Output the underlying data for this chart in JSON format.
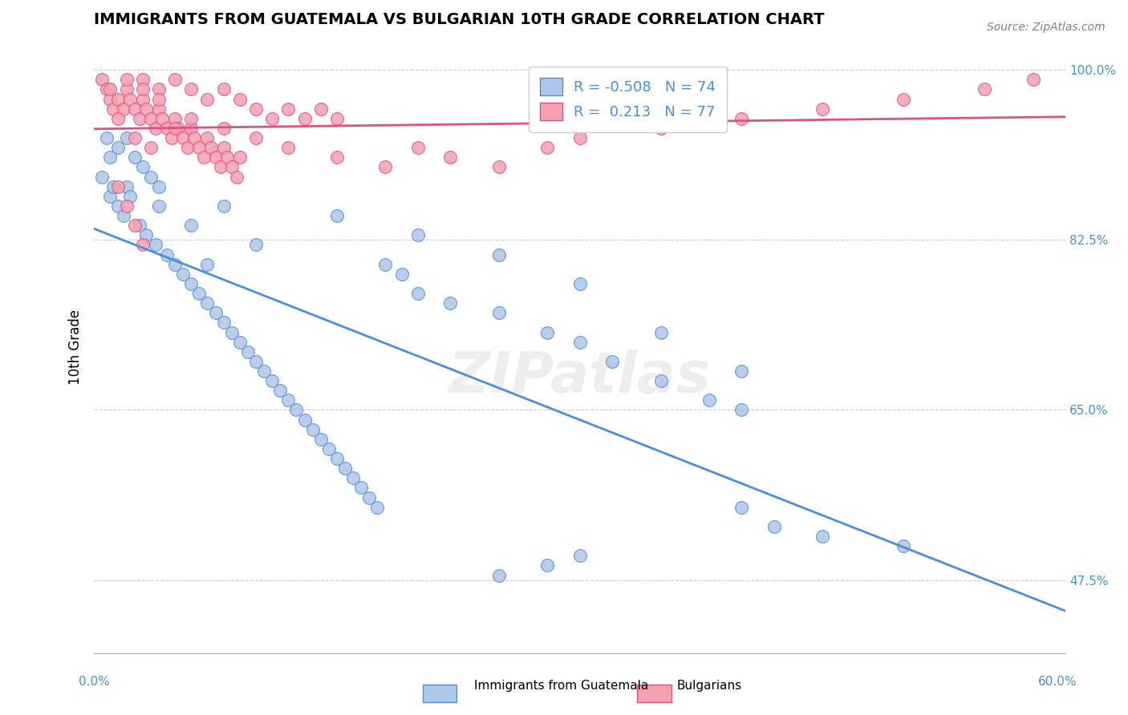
{
  "title": "IMMIGRANTS FROM GUATEMALA VS BULGARIAN 10TH GRADE CORRELATION CHART",
  "source": "Source: ZipAtlas.com",
  "ylabel": "10th Grade",
  "xlim": [
    0.0,
    0.6
  ],
  "ylim": [
    0.4,
    1.03
  ],
  "blue_R": -0.508,
  "blue_N": 74,
  "pink_R": 0.213,
  "pink_N": 77,
  "blue_color": "#aec6e8",
  "pink_color": "#f4a0b0",
  "blue_line_color": "#4a90d9",
  "pink_line_color": "#e05080",
  "legend_label_blue": "Immigrants from Guatemala",
  "legend_label_pink": "Bulgarians",
  "watermark": "ZIPatlas",
  "blue_dots": [
    [
      0.02,
      0.88
    ],
    [
      0.015,
      0.92
    ],
    [
      0.01,
      0.87
    ],
    [
      0.025,
      0.91
    ],
    [
      0.03,
      0.9
    ],
    [
      0.035,
      0.89
    ],
    [
      0.04,
      0.88
    ],
    [
      0.02,
      0.93
    ],
    [
      0.015,
      0.86
    ],
    [
      0.01,
      0.91
    ],
    [
      0.005,
      0.89
    ],
    [
      0.008,
      0.93
    ],
    [
      0.012,
      0.88
    ],
    [
      0.022,
      0.87
    ],
    [
      0.018,
      0.85
    ],
    [
      0.028,
      0.84
    ],
    [
      0.032,
      0.83
    ],
    [
      0.038,
      0.82
    ],
    [
      0.045,
      0.81
    ],
    [
      0.05,
      0.8
    ],
    [
      0.055,
      0.79
    ],
    [
      0.06,
      0.78
    ],
    [
      0.065,
      0.77
    ],
    [
      0.07,
      0.76
    ],
    [
      0.075,
      0.75
    ],
    [
      0.08,
      0.74
    ],
    [
      0.085,
      0.73
    ],
    [
      0.09,
      0.72
    ],
    [
      0.095,
      0.71
    ],
    [
      0.1,
      0.7
    ],
    [
      0.105,
      0.69
    ],
    [
      0.11,
      0.68
    ],
    [
      0.115,
      0.67
    ],
    [
      0.12,
      0.66
    ],
    [
      0.125,
      0.65
    ],
    [
      0.13,
      0.64
    ],
    [
      0.135,
      0.63
    ],
    [
      0.14,
      0.62
    ],
    [
      0.145,
      0.61
    ],
    [
      0.15,
      0.6
    ],
    [
      0.155,
      0.59
    ],
    [
      0.16,
      0.58
    ],
    [
      0.165,
      0.57
    ],
    [
      0.17,
      0.56
    ],
    [
      0.175,
      0.55
    ],
    [
      0.18,
      0.8
    ],
    [
      0.19,
      0.79
    ],
    [
      0.2,
      0.77
    ],
    [
      0.22,
      0.76
    ],
    [
      0.25,
      0.75
    ],
    [
      0.28,
      0.73
    ],
    [
      0.3,
      0.72
    ],
    [
      0.32,
      0.7
    ],
    [
      0.35,
      0.68
    ],
    [
      0.38,
      0.66
    ],
    [
      0.4,
      0.65
    ],
    [
      0.3,
      0.78
    ],
    [
      0.25,
      0.81
    ],
    [
      0.2,
      0.83
    ],
    [
      0.15,
      0.85
    ],
    [
      0.1,
      0.82
    ],
    [
      0.08,
      0.86
    ],
    [
      0.06,
      0.84
    ],
    [
      0.04,
      0.86
    ],
    [
      0.07,
      0.8
    ],
    [
      0.35,
      0.73
    ],
    [
      0.4,
      0.69
    ],
    [
      0.42,
      0.53
    ],
    [
      0.45,
      0.52
    ],
    [
      0.5,
      0.51
    ],
    [
      0.3,
      0.5
    ],
    [
      0.28,
      0.49
    ],
    [
      0.4,
      0.55
    ],
    [
      0.25,
      0.48
    ]
  ],
  "pink_dots": [
    [
      0.005,
      0.99
    ],
    [
      0.008,
      0.98
    ],
    [
      0.01,
      0.97
    ],
    [
      0.012,
      0.96
    ],
    [
      0.015,
      0.97
    ],
    [
      0.018,
      0.96
    ],
    [
      0.02,
      0.98
    ],
    [
      0.022,
      0.97
    ],
    [
      0.025,
      0.96
    ],
    [
      0.028,
      0.95
    ],
    [
      0.03,
      0.97
    ],
    [
      0.032,
      0.96
    ],
    [
      0.035,
      0.95
    ],
    [
      0.038,
      0.94
    ],
    [
      0.04,
      0.96
    ],
    [
      0.042,
      0.95
    ],
    [
      0.045,
      0.94
    ],
    [
      0.048,
      0.93
    ],
    [
      0.05,
      0.95
    ],
    [
      0.052,
      0.94
    ],
    [
      0.055,
      0.93
    ],
    [
      0.058,
      0.92
    ],
    [
      0.06,
      0.94
    ],
    [
      0.062,
      0.93
    ],
    [
      0.065,
      0.92
    ],
    [
      0.068,
      0.91
    ],
    [
      0.07,
      0.93
    ],
    [
      0.072,
      0.92
    ],
    [
      0.075,
      0.91
    ],
    [
      0.078,
      0.9
    ],
    [
      0.08,
      0.92
    ],
    [
      0.082,
      0.91
    ],
    [
      0.085,
      0.9
    ],
    [
      0.088,
      0.89
    ],
    [
      0.09,
      0.91
    ],
    [
      0.015,
      0.88
    ],
    [
      0.02,
      0.86
    ],
    [
      0.025,
      0.84
    ],
    [
      0.03,
      0.82
    ],
    [
      0.1,
      0.93
    ],
    [
      0.12,
      0.92
    ],
    [
      0.15,
      0.91
    ],
    [
      0.18,
      0.9
    ],
    [
      0.2,
      0.92
    ],
    [
      0.22,
      0.91
    ],
    [
      0.25,
      0.9
    ],
    [
      0.28,
      0.92
    ],
    [
      0.3,
      0.93
    ],
    [
      0.35,
      0.94
    ],
    [
      0.4,
      0.95
    ],
    [
      0.45,
      0.96
    ],
    [
      0.5,
      0.97
    ],
    [
      0.55,
      0.98
    ],
    [
      0.58,
      0.99
    ],
    [
      0.03,
      0.99
    ],
    [
      0.04,
      0.98
    ],
    [
      0.05,
      0.99
    ],
    [
      0.06,
      0.98
    ],
    [
      0.07,
      0.97
    ],
    [
      0.08,
      0.98
    ],
    [
      0.09,
      0.97
    ],
    [
      0.1,
      0.96
    ],
    [
      0.11,
      0.95
    ],
    [
      0.12,
      0.96
    ],
    [
      0.13,
      0.95
    ],
    [
      0.14,
      0.96
    ],
    [
      0.15,
      0.95
    ],
    [
      0.08,
      0.94
    ],
    [
      0.06,
      0.95
    ],
    [
      0.05,
      0.94
    ],
    [
      0.04,
      0.97
    ],
    [
      0.03,
      0.98
    ],
    [
      0.02,
      0.99
    ],
    [
      0.01,
      0.98
    ],
    [
      0.015,
      0.95
    ],
    [
      0.025,
      0.93
    ],
    [
      0.035,
      0.92
    ]
  ]
}
